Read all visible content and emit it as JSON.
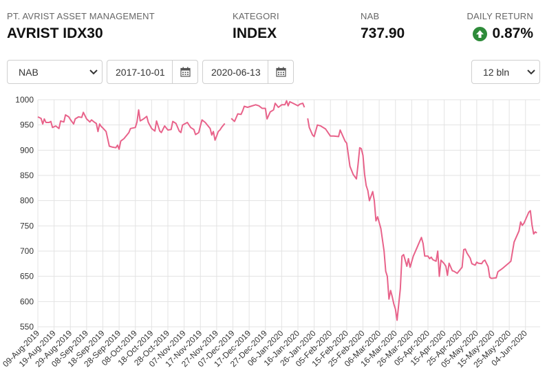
{
  "header": {
    "manager_label": "PT. AVRIST ASSET MANAGEMENT",
    "fund_name": "AVRIST IDX30",
    "category_label": "KATEGORI",
    "category_value": "INDEX",
    "nav_label": "NAB",
    "nav_value": "737.90",
    "return_label": "DAILY RETURN",
    "return_value": "0.87%"
  },
  "controls": {
    "metric_select": "NAB",
    "start_date": "2017-10-01",
    "end_date": "2020-06-13",
    "period_select": "12 bln"
  },
  "colors": {
    "line": "#e8628a",
    "up": "#2e8b3a",
    "grid": "#e3e3e3"
  },
  "icons": {
    "return": "arrow-up-circle-icon",
    "date": "calendar-icon",
    "select": "chevron-down-icon"
  },
  "chart_data": {
    "type": "line",
    "ylim": [
      550,
      1000
    ],
    "yticks": [
      550,
      600,
      650,
      700,
      750,
      800,
      850,
      900,
      950,
      1000
    ],
    "xlim": [
      "2019-08-09",
      "2020-06-13"
    ],
    "xticks": [
      "09-Aug-2019",
      "19-Aug-2019",
      "29-Aug-2019",
      "08-Sep-2019",
      "18-Sep-2019",
      "28-Sep-2019",
      "08-Oct-2019",
      "18-Oct-2019",
      "28-Oct-2019",
      "07-Nov-2019",
      "17-Nov-2019",
      "27-Nov-2019",
      "07-Dec-2019",
      "17-Dec-2019",
      "27-Dec-2019",
      "06-Jan-2020",
      "16-Jan-2020",
      "26-Jan-2020",
      "05-Feb-2020",
      "15-Feb-2020",
      "25-Feb-2020",
      "06-Mar-2020",
      "16-Mar-2020",
      "26-Mar-2020",
      "05-Apr-2020",
      "15-Apr-2020",
      "25-Apr-2020",
      "05-May-2020",
      "15-May-2020",
      "25-May-2020",
      "04-Jun-2020"
    ],
    "grid": true,
    "series": [
      {
        "values": [
          [
            "2019-08-09",
            966
          ],
          [
            "2019-08-11",
            963
          ],
          [
            "2019-08-12",
            952
          ],
          [
            "2019-08-13",
            962
          ],
          [
            "2019-08-14",
            955
          ],
          [
            "2019-08-16",
            955
          ],
          [
            "2019-08-17",
            957
          ],
          [
            "2019-08-18",
            945
          ],
          [
            "2019-08-20",
            948
          ],
          [
            "2019-08-22",
            943
          ],
          [
            "2019-08-23",
            958
          ],
          [
            "2019-08-25",
            956
          ],
          [
            "2019-08-26",
            970
          ],
          [
            "2019-08-28",
            966
          ],
          [
            "2019-08-29",
            961
          ],
          [
            "2019-08-31",
            952
          ],
          [
            "2019-09-01",
            962
          ],
          [
            "2019-09-03",
            966
          ],
          [
            "2019-09-05",
            965
          ],
          [
            "2019-09-06",
            975
          ],
          [
            "2019-09-08",
            962
          ],
          [
            "2019-09-10",
            956
          ],
          [
            "2019-09-11",
            960
          ],
          [
            "2019-09-13",
            955
          ],
          [
            "2019-09-14",
            953
          ],
          [
            "2019-09-15",
            937
          ],
          [
            "2019-09-16",
            952
          ],
          [
            "2019-09-17",
            947
          ],
          [
            "2019-09-18",
            944
          ],
          [
            "2019-09-20",
            937
          ],
          [
            "2019-09-22",
            908
          ],
          [
            "2019-09-24",
            906
          ],
          [
            "2019-09-26",
            905
          ],
          [
            "2019-09-27",
            910
          ],
          [
            "2019-09-28",
            902
          ],
          [
            "2019-09-29",
            918
          ],
          [
            "2019-10-01",
            923
          ],
          [
            "2019-10-04",
            935
          ],
          [
            "2019-10-05",
            943
          ],
          [
            "2019-10-08",
            945
          ],
          [
            "2019-10-09",
            956
          ],
          [
            "2019-10-10",
            980
          ],
          [
            "2019-10-11",
            958
          ],
          [
            "2019-10-13",
            962
          ],
          [
            "2019-10-15",
            967
          ],
          [
            "2019-10-16",
            955
          ],
          [
            "2019-10-18",
            943
          ],
          [
            "2019-10-20",
            938
          ],
          [
            "2019-10-21",
            958
          ],
          [
            "2019-10-23",
            938
          ],
          [
            "2019-10-24",
            935
          ],
          [
            "2019-10-26",
            948
          ],
          [
            "2019-10-28",
            940
          ],
          [
            "2019-10-30",
            941
          ],
          [
            "2019-10-31",
            957
          ],
          [
            "2019-11-02",
            953
          ],
          [
            "2019-11-04",
            938
          ],
          [
            "2019-11-05",
            935
          ],
          [
            "2019-11-06",
            950
          ],
          [
            "2019-11-09",
            955
          ],
          [
            "2019-11-11",
            945
          ],
          [
            "2019-11-13",
            941
          ],
          [
            "2019-11-14",
            931
          ],
          [
            "2019-11-16",
            935
          ],
          [
            "2019-11-17",
            948
          ],
          [
            "2019-11-18",
            960
          ],
          [
            "2019-11-20",
            955
          ],
          [
            "2019-11-23",
            943
          ],
          [
            "2019-11-24",
            930
          ],
          [
            "2019-11-25",
            937
          ],
          [
            "2019-11-26",
            920
          ],
          [
            "2019-11-27",
            928
          ],
          [
            "2019-11-28",
            937
          ],
          [
            "2019-11-29",
            940
          ],
          [
            "2019-11-30",
            945
          ],
          [
            "2019-12-02",
            953
          ],
          null,
          [
            "2019-12-06",
            963
          ],
          [
            "2019-12-08",
            957
          ],
          [
            "2019-12-10",
            972
          ],
          [
            "2019-12-12",
            971
          ],
          [
            "2019-12-13",
            978
          ],
          [
            "2019-12-14",
            987
          ],
          [
            "2019-12-16",
            985
          ],
          [
            "2019-12-18",
            987
          ],
          [
            "2019-12-21",
            990
          ],
          [
            "2019-12-23",
            988
          ],
          [
            "2019-12-25",
            983
          ],
          [
            "2019-12-26",
            983
          ],
          [
            "2019-12-27",
            983
          ],
          [
            "2019-12-28",
            962
          ],
          [
            "2019-12-30",
            976
          ],
          [
            "2020-01-01",
            980
          ],
          [
            "2020-01-02",
            993
          ],
          [
            "2020-01-04",
            985
          ],
          [
            "2020-01-06",
            990
          ],
          [
            "2020-01-08",
            990
          ],
          [
            "2020-01-09",
            998
          ],
          [
            "2020-01-10",
            988
          ],
          [
            "2020-01-11",
            996
          ],
          [
            "2020-01-13",
            993
          ],
          [
            "2020-01-16",
            988
          ],
          [
            "2020-01-17",
            991
          ],
          [
            "2020-01-19",
            993
          ],
          [
            "2020-01-20",
            985
          ],
          null,
          [
            "2020-01-22",
            963
          ],
          [
            "2020-01-23",
            945
          ],
          [
            "2020-01-25",
            930
          ],
          [
            "2020-01-26",
            927
          ],
          [
            "2020-01-28",
            950
          ],
          [
            "2020-01-30",
            948
          ],
          [
            "2020-02-02",
            942
          ],
          [
            "2020-02-05",
            928
          ],
          [
            "2020-02-07",
            928
          ],
          [
            "2020-02-10",
            927
          ],
          [
            "2020-02-11",
            940
          ],
          [
            "2020-02-14",
            918
          ],
          [
            "2020-02-15",
            914
          ],
          [
            "2020-02-17",
            868
          ],
          [
            "2020-02-19",
            852
          ],
          [
            "2020-02-21",
            843
          ],
          [
            "2020-02-22",
            872
          ],
          [
            "2020-02-23",
            905
          ],
          [
            "2020-02-24",
            903
          ],
          [
            "2020-02-25",
            890
          ],
          [
            "2020-02-26",
            852
          ],
          [
            "2020-02-27",
            830
          ],
          [
            "2020-02-28",
            820
          ],
          [
            "2020-02-29",
            800
          ],
          [
            "2020-03-02",
            818
          ],
          [
            "2020-03-03",
            800
          ],
          [
            "2020-03-04",
            760
          ],
          [
            "2020-03-05",
            768
          ],
          [
            "2020-03-07",
            745
          ],
          [
            "2020-03-09",
            700
          ],
          [
            "2020-03-10",
            660
          ],
          [
            "2020-03-11",
            650
          ],
          [
            "2020-03-12",
            605
          ],
          [
            "2020-03-13",
            622
          ],
          [
            "2020-03-14",
            610
          ],
          [
            "2020-03-15",
            595
          ],
          [
            "2020-03-16",
            585
          ],
          [
            "2020-03-17",
            563
          ],
          [
            "2020-03-19",
            625
          ],
          [
            "2020-03-20",
            690
          ],
          [
            "2020-03-21",
            693
          ],
          [
            "2020-03-22",
            682
          ],
          [
            "2020-03-23",
            670
          ],
          [
            "2020-03-24",
            685
          ],
          [
            "2020-03-25",
            668
          ],
          [
            "2020-03-27",
            690
          ],
          [
            "2020-03-29",
            705
          ],
          [
            "2020-03-31",
            720
          ],
          [
            "2020-04-01",
            727
          ],
          [
            "2020-04-02",
            715
          ],
          [
            "2020-04-03",
            690
          ],
          [
            "2020-04-05",
            690
          ],
          [
            "2020-04-06",
            685
          ],
          [
            "2020-04-07",
            688
          ],
          [
            "2020-04-08",
            683
          ],
          [
            "2020-04-10",
            680
          ],
          [
            "2020-04-11",
            700
          ],
          [
            "2020-04-12",
            650
          ],
          [
            "2020-04-13",
            682
          ],
          [
            "2020-04-15",
            675
          ],
          [
            "2020-04-16",
            670
          ],
          [
            "2020-04-17",
            652
          ],
          [
            "2020-04-18",
            676
          ],
          [
            "2020-04-20",
            661
          ],
          [
            "2020-04-21",
            660
          ],
          [
            "2020-04-23",
            656
          ],
          [
            "2020-04-25",
            664
          ],
          [
            "2020-04-26",
            668
          ],
          [
            "2020-04-27",
            703
          ],
          [
            "2020-04-28",
            704
          ],
          [
            "2020-04-29",
            696
          ],
          [
            "2020-05-01",
            686
          ],
          [
            "2020-05-02",
            675
          ],
          [
            "2020-05-04",
            672
          ],
          [
            "2020-05-05",
            678
          ],
          [
            "2020-05-06",
            676
          ],
          [
            "2020-05-08",
            675
          ],
          [
            "2020-05-09",
            680
          ],
          [
            "2020-05-10",
            682
          ],
          [
            "2020-05-12",
            669
          ],
          [
            "2020-05-13",
            648
          ],
          [
            "2020-05-14",
            646
          ],
          [
            "2020-05-17",
            647
          ],
          [
            "2020-05-18",
            659
          ],
          [
            "2020-05-21",
            666
          ],
          [
            "2020-05-25",
            677
          ],
          [
            "2020-05-26",
            680
          ],
          [
            "2020-05-28",
            718
          ],
          [
            "2020-05-31",
            740
          ],
          [
            "2020-06-01",
            758
          ],
          [
            "2020-06-02",
            751
          ],
          [
            "2020-06-03",
            755
          ],
          [
            "2020-06-04",
            762
          ],
          [
            "2020-06-06",
            777
          ],
          [
            "2020-06-07",
            780
          ],
          [
            "2020-06-08",
            752
          ],
          [
            "2020-06-09",
            734
          ],
          [
            "2020-06-10",
            738
          ],
          [
            "2020-06-11",
            736
          ]
        ]
      }
    ]
  }
}
